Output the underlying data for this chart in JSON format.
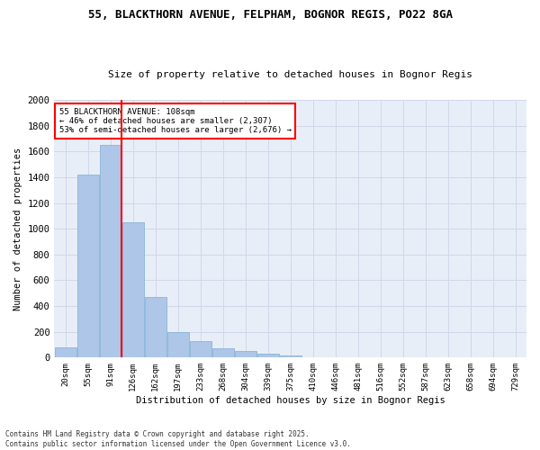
{
  "title1": "55, BLACKTHORN AVENUE, FELPHAM, BOGNOR REGIS, PO22 8GA",
  "title2": "Size of property relative to detached houses in Bognor Regis",
  "xlabel": "Distribution of detached houses by size in Bognor Regis",
  "ylabel": "Number of detached properties",
  "bins": [
    "20sqm",
    "55sqm",
    "91sqm",
    "126sqm",
    "162sqm",
    "197sqm",
    "233sqm",
    "268sqm",
    "304sqm",
    "339sqm",
    "375sqm",
    "410sqm",
    "446sqm",
    "481sqm",
    "516sqm",
    "552sqm",
    "587sqm",
    "623sqm",
    "658sqm",
    "694sqm",
    "729sqm"
  ],
  "bar_values": [
    80,
    1420,
    1650,
    1050,
    470,
    200,
    130,
    70,
    50,
    30,
    15,
    5,
    0,
    0,
    0,
    0,
    0,
    0,
    0,
    0
  ],
  "bar_color": "#aec6e8",
  "bar_edge_color": "#7aadd4",
  "vline_color": "red",
  "annotation_text": "55 BLACKTHORN AVENUE: 108sqm\n← 46% of detached houses are smaller (2,307)\n53% of semi-detached houses are larger (2,676) →",
  "annotation_box_color": "white",
  "annotation_box_edge": "red",
  "ylim": [
    0,
    2000
  ],
  "yticks": [
    0,
    200,
    400,
    600,
    800,
    1000,
    1200,
    1400,
    1600,
    1800,
    2000
  ],
  "grid_color": "#d0d8e8",
  "bg_color": "#e8eef8",
  "footer1": "Contains HM Land Registry data © Crown copyright and database right 2025.",
  "footer2": "Contains public sector information licensed under the Open Government Licence v3.0."
}
